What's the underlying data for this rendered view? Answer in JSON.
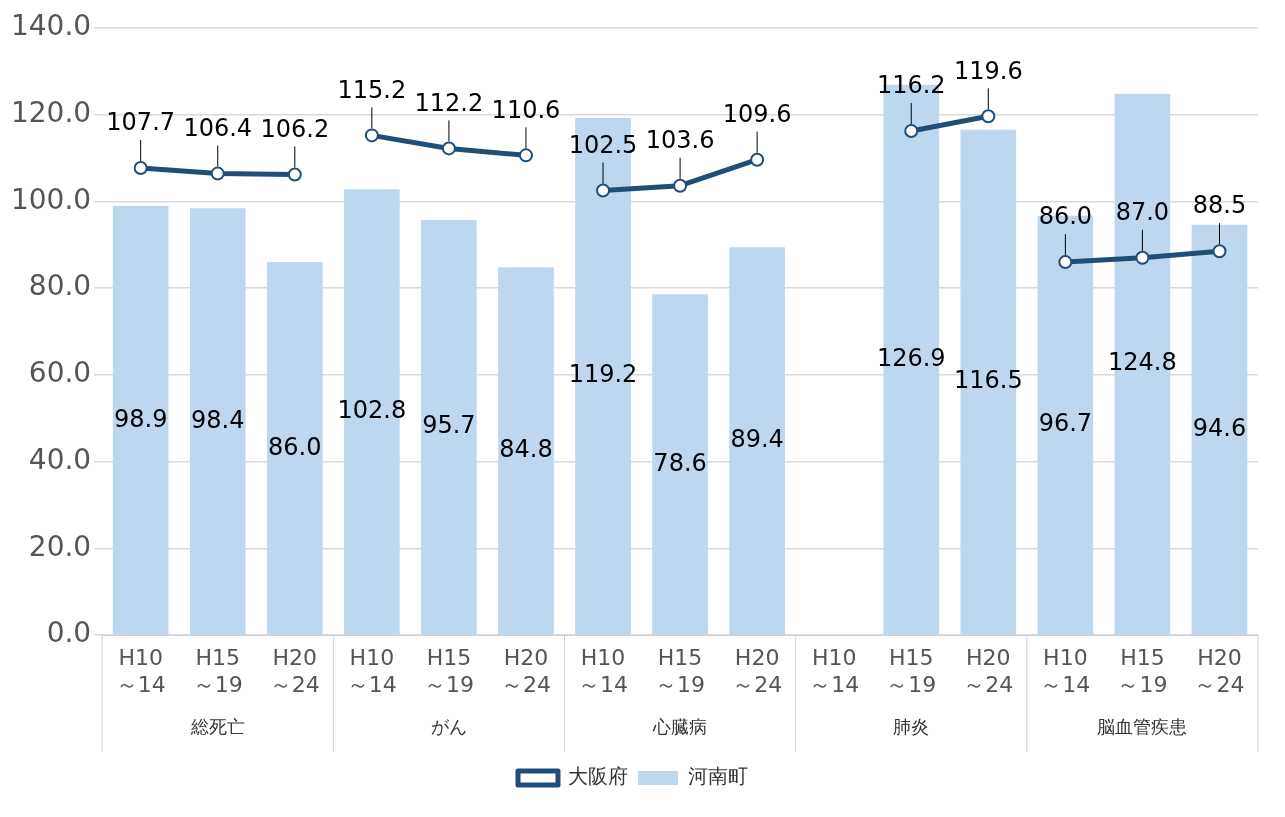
{
  "chart_data": {
    "type": "bar",
    "categories": [
      "H10～14",
      "H15～19",
      "H20～24",
      "H10～14",
      "H15～19",
      "H20～24",
      "H10～14",
      "H15～19",
      "H20～24",
      "H10～14",
      "H15～19",
      "H20～24",
      "H10～14",
      "H15～19",
      "H20～24"
    ],
    "annotations": [
      "総死亡",
      "がん",
      "心臓病",
      "肺炎",
      "脳血管疾患"
    ],
    "series": [
      {
        "name": "河南町",
        "color": "#bdd7ee",
        "values": [
          98.9,
          98.4,
          86.0,
          102.8,
          95.7,
          84.8,
          119.2,
          78.6,
          89.4,
          null,
          126.9,
          116.5,
          96.7,
          124.8,
          94.6
        ],
        "value_labels": [
          "98.9",
          "98.4",
          "86.0",
          "102.8",
          "95.7",
          "84.8",
          "119.2",
          "78.6",
          "89.4",
          null,
          "126.9",
          "116.5",
          "96.7",
          "124.8",
          "94.6"
        ]
      },
      {
        "name": "大阪府",
        "type": "line",
        "color": "#1f4e79",
        "values": [
          107.7,
          106.4,
          106.2,
          115.2,
          112.2,
          110.6,
          102.5,
          103.6,
          109.6,
          null,
          116.2,
          119.6,
          86.0,
          87.0,
          88.5
        ],
        "value_labels": [
          "107.7",
          "106.4",
          "106.2",
          "115.2",
          "112.2",
          "110.6",
          "102.5",
          "103.6",
          "109.6",
          null,
          "116.2",
          "119.6",
          "86.0",
          "87.0",
          "88.5"
        ]
      }
    ],
    "ylim": [
      0,
      140
    ],
    "yticks": [
      {
        "value": 0,
        "label": "0.0"
      },
      {
        "value": 20,
        "label": "20.0"
      },
      {
        "value": 40,
        "label": "40.0"
      },
      {
        "value": 60,
        "label": "60.0"
      },
      {
        "value": 80,
        "label": "80.0"
      },
      {
        "value": 100,
        "label": "100.0"
      },
      {
        "value": 120,
        "label": "120.0"
      },
      {
        "value": 140,
        "label": "140.0"
      }
    ],
    "grid": "y",
    "legend": "bottom",
    "marker": "circle",
    "line_style": "solid"
  }
}
